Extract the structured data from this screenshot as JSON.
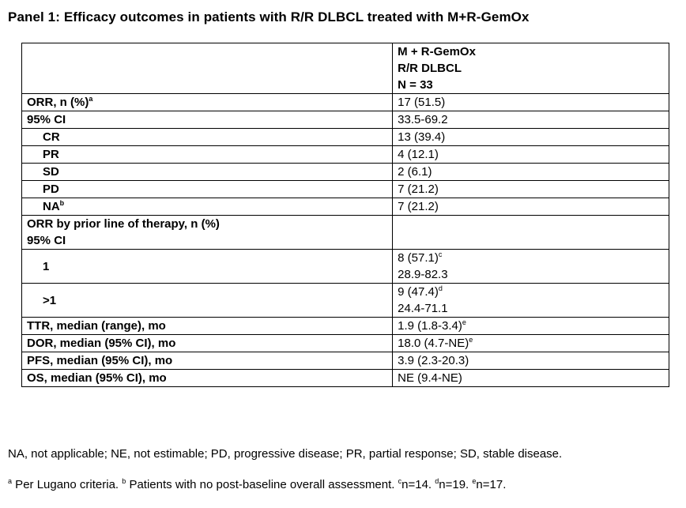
{
  "title": "Panel 1: Efficacy outcomes in patients with R/R DLBCL treated with M+R-GemOx",
  "header": {
    "line1": "M + R-GemOx",
    "line2": "R/R DLBCL",
    "line3": "N = 33"
  },
  "rows": {
    "orr": {
      "label": "ORR, n (%)",
      "label_sup": "a",
      "ci_label": "95% CI",
      "value": "17 (51.5)",
      "ci": "33.5-69.2"
    },
    "cr": {
      "label": "CR",
      "value": "13 (39.4)"
    },
    "pr": {
      "label": "PR",
      "value": "4 (12.1)"
    },
    "sd": {
      "label": "SD",
      "value": "2 (6.1)"
    },
    "pd": {
      "label": "PD",
      "value": "7 (21.2)"
    },
    "na": {
      "label": "NA",
      "label_sup": "b",
      "value": "7 (21.2)"
    },
    "orr_prior": {
      "label": "ORR by prior line of therapy, n (%)",
      "ci_label": "95% CI"
    },
    "line_1": {
      "label": "1",
      "value": "8 (57.1)",
      "value_sup": "c",
      "ci": "28.9-82.3"
    },
    "line_gt1": {
      "label": ">1",
      "value": "9 (47.4)",
      "value_sup": "d",
      "ci": "24.4-71.1"
    },
    "ttr": {
      "label": "TTR, median (range), mo",
      "value": "1.9 (1.8-3.4)",
      "value_sup": "e"
    },
    "dor": {
      "label": "DOR, median (95% CI), mo",
      "value": "18.0 (4.7-NE)",
      "value_sup": "e"
    },
    "pfs": {
      "label": "PFS, median (95% CI), mo",
      "value": "3.9 (2.3-20.3)"
    },
    "os": {
      "label": "OS, median (95% CI), mo",
      "value": "NE (9.4-NE)"
    }
  },
  "footnotes": {
    "abbrev": "NA, not applicable; NE, not estimable; PD, progressive disease; PR, partial response; SD, stable disease.",
    "a_sup": "a",
    "a_text": " Per Lugano criteria. ",
    "b_sup": "b",
    "b_text": " Patients with no post-baseline overall assessment. ",
    "c_sup": "c",
    "c_text": "n=14. ",
    "d_sup": "d",
    "d_text": "n=19. ",
    "e_sup": "e",
    "e_text": "n=17."
  }
}
